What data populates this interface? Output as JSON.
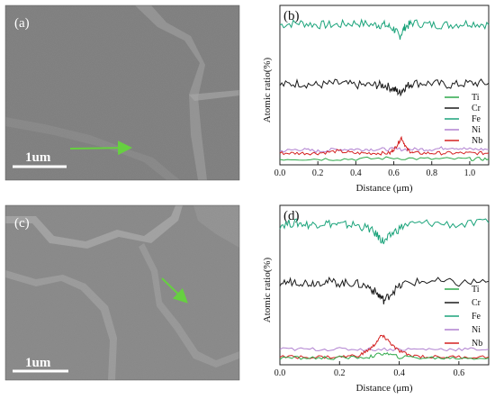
{
  "panels": {
    "a": {
      "label": "(a)",
      "scale_label": "1um"
    },
    "b": {
      "label": "(b)"
    },
    "c": {
      "label": "(c)",
      "scale_label": "1um"
    },
    "d": {
      "label": "(d)"
    }
  },
  "colors": {
    "Ti": "#2ea84a",
    "Cr": "#1a1a1a",
    "Fe": "#1aa37a",
    "Ni": "#b080d0",
    "Nb": "#d42020",
    "arrow": "#66d040"
  },
  "chart_data": [
    {
      "id": "b",
      "type": "line",
      "xlabel": "Distance (μm)",
      "ylabel": "Atomic ratio(%)",
      "xlim": [
        0,
        1.1
      ],
      "xticks": [
        "0.0",
        "0.2",
        "0.4",
        "0.6",
        "0.8",
        "1.0"
      ],
      "legend": [
        "Ti",
        "Cr",
        "Fe",
        "Ni",
        "Nb"
      ],
      "legend_position": "middle-right",
      "series": [
        {
          "name": "Fe",
          "x": [
            0.0,
            0.1,
            0.2,
            0.3,
            0.4,
            0.5,
            0.55,
            0.6,
            0.63,
            0.66,
            0.7,
            0.8,
            0.9,
            1.0,
            1.1
          ],
          "y": [
            70,
            71,
            70,
            70,
            71,
            70,
            70,
            68,
            64,
            69,
            71,
            70,
            70,
            71,
            70
          ]
        },
        {
          "name": "Cr",
          "x": [
            0.0,
            0.1,
            0.2,
            0.3,
            0.4,
            0.5,
            0.55,
            0.6,
            0.63,
            0.66,
            0.7,
            0.8,
            0.9,
            1.0,
            1.1
          ],
          "y": [
            39,
            40,
            39,
            40,
            39,
            39,
            39,
            37,
            35,
            38,
            40,
            40,
            39,
            40,
            40
          ]
        },
        {
          "name": "Ni",
          "x": [
            0.0,
            0.1,
            0.2,
            0.3,
            0.4,
            0.5,
            0.6,
            0.7,
            0.8,
            0.9,
            1.0,
            1.1
          ],
          "y": [
            5,
            6,
            5,
            6,
            6,
            6,
            6,
            6,
            6,
            7,
            6,
            6
          ]
        },
        {
          "name": "Nb",
          "x": [
            0.0,
            0.1,
            0.2,
            0.3,
            0.4,
            0.5,
            0.58,
            0.61,
            0.64,
            0.67,
            0.7,
            0.8,
            0.9,
            1.0,
            1.1
          ],
          "y": [
            4,
            4,
            4,
            5,
            4,
            4,
            4,
            7,
            12,
            6,
            4,
            4,
            4,
            4,
            4
          ]
        },
        {
          "name": "Ti",
          "x": [
            0.0,
            0.2,
            0.4,
            0.6,
            0.8,
            1.0,
            1.1
          ],
          "y": [
            1,
            1,
            1,
            1.5,
            1,
            1,
            1
          ]
        }
      ]
    },
    {
      "id": "d",
      "type": "line",
      "xlabel": "Distance (μm)",
      "ylabel": "Atomic ratio(%)",
      "xlim": [
        0,
        0.7
      ],
      "xticks": [
        "0.0",
        "0.2",
        "0.4",
        "0.6"
      ],
      "legend": [
        "Ti",
        "Cr",
        "Fe",
        "Ni",
        "Nb"
      ],
      "legend_position": "lower-right",
      "series": [
        {
          "name": "Fe",
          "x": [
            0.0,
            0.05,
            0.1,
            0.15,
            0.2,
            0.25,
            0.3,
            0.33,
            0.35,
            0.38,
            0.42,
            0.5,
            0.6,
            0.7
          ],
          "y": [
            70,
            71,
            70,
            71,
            70,
            70,
            68,
            64,
            61,
            66,
            70,
            71,
            70,
            71
          ]
        },
        {
          "name": "Cr",
          "x": [
            0.0,
            0.05,
            0.1,
            0.15,
            0.2,
            0.25,
            0.3,
            0.33,
            0.35,
            0.38,
            0.42,
            0.5,
            0.6,
            0.7
          ],
          "y": [
            40,
            41,
            40,
            41,
            40,
            40,
            38,
            34,
            31,
            36,
            40,
            41,
            40,
            41
          ]
        },
        {
          "name": "Ni",
          "x": [
            0.0,
            0.1,
            0.2,
            0.3,
            0.4,
            0.5,
            0.6,
            0.7
          ],
          "y": [
            6,
            6,
            6,
            6,
            6,
            6,
            6,
            6
          ]
        },
        {
          "name": "Nb",
          "x": [
            0.0,
            0.1,
            0.2,
            0.27,
            0.31,
            0.34,
            0.36,
            0.39,
            0.43,
            0.5,
            0.6,
            0.7
          ],
          "y": [
            2,
            2,
            2,
            3,
            7,
            13,
            11,
            6,
            3,
            2,
            2,
            2
          ]
        },
        {
          "name": "Ti",
          "x": [
            0.0,
            0.1,
            0.2,
            0.3,
            0.35,
            0.4,
            0.5,
            0.6,
            0.7
          ],
          "y": [
            1.5,
            1.5,
            1.5,
            2,
            4,
            2,
            1.5,
            1.5,
            1.5
          ]
        }
      ]
    }
  ]
}
